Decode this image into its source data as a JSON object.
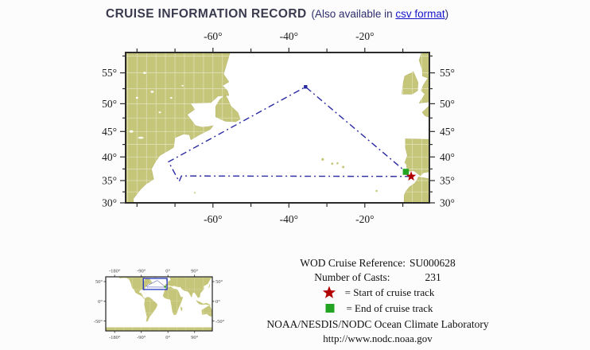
{
  "header": {
    "title": "CRUISE INFORMATION RECORD",
    "also_prefix": "(Also available in ",
    "csv_link": "csv format",
    "also_suffix": ")"
  },
  "main_map": {
    "lon_range": [
      -83,
      -3
    ],
    "lat_range": [
      30,
      58
    ],
    "projection": "mercator",
    "lon_ticks": [
      {
        "label": "-60°",
        "lon": -60
      },
      {
        "label": "-40°",
        "lon": -40
      },
      {
        "label": "-20°",
        "lon": -20
      }
    ],
    "lat_ticks": [
      {
        "label": "55°",
        "lat": 55
      },
      {
        "label": "50°",
        "lat": 50
      },
      {
        "label": "45°",
        "lat": 45
      },
      {
        "label": "40°",
        "lat": 40
      },
      {
        "label": "35°",
        "lat": 35
      },
      {
        "label": "30°",
        "lat": 30
      }
    ],
    "lon_tick_step": 10,
    "lat_minor_step": 2.5
  },
  "track": {
    "points": [
      [
        -7.8,
        35.9
      ],
      [
        -68.3,
        36.0
      ],
      [
        -68.9,
        34.8
      ],
      [
        -71.7,
        39.0
      ],
      [
        -35.6,
        52.8
      ],
      [
        -9.2,
        36.9
      ]
    ],
    "start_point": [
      -7.8,
      35.9
    ],
    "end_point": [
      -9.2,
      36.9
    ],
    "apex_point": [
      -35.6,
      52.8
    ]
  },
  "inset_map": {
    "lon_labels": [
      {
        "label": "-180°",
        "lon": -180
      },
      {
        "label": "-90°",
        "lon": -90
      },
      {
        "label": "0°",
        "lon": 0
      },
      {
        "label": "90°",
        "lon": 90
      }
    ],
    "lat_labels": [
      {
        "label": "50°",
        "lat": 50
      },
      {
        "label": "0°",
        "lat": 0
      },
      {
        "label": "-50°",
        "lat": -50
      }
    ],
    "highlight_lon": [
      -83,
      -3
    ],
    "highlight_lat": [
      30,
      58
    ]
  },
  "info": {
    "reference_label": "WOD Cruise Reference:",
    "reference_value": "SU000628",
    "casts_label": "Number of Casts:",
    "casts_value": "231",
    "start_legend": "= Start of cruise track",
    "end_legend": "= End of cruise track",
    "org": "NOAA/NESDIS/NODC Ocean Climate Laboratory",
    "url": "http://www.nodc.noaa.gov"
  },
  "colors": {
    "land": "#c6c67a",
    "land_edge": "#b2b266",
    "ocean": "#ffffff",
    "track": "#2a2aa4",
    "start_marker": "#b00000",
    "end_marker": "#22a322",
    "frame": "#2b2b2b",
    "axis_text": "#1a1a1a",
    "grid": "#ffffff",
    "highlight_box": "#2336c2",
    "title": "#3a3a4e",
    "also_text": "#2d2d6b",
    "link": "#1313cb"
  }
}
